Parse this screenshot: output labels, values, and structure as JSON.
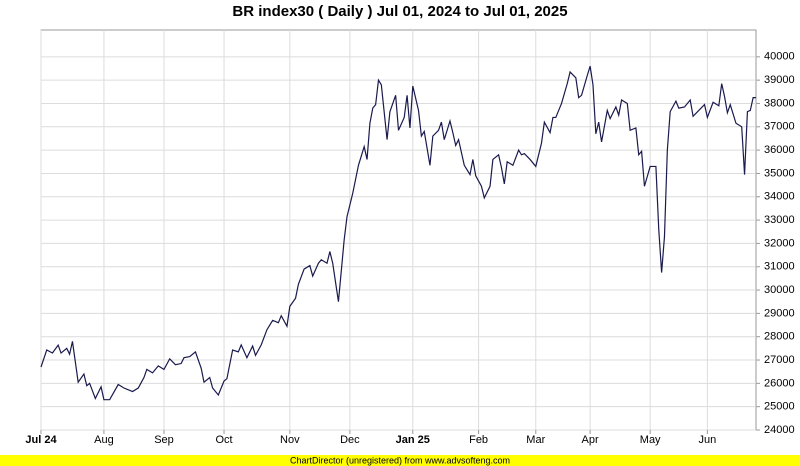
{
  "chart_data": {
    "type": "line",
    "title": "BR index30 ( Daily ) Jul 01, 2024 to Jul 01, 2025",
    "footer": "ChartDirector (unregistered) from www.advsofteng.com",
    "x": [
      0,
      2,
      4,
      6,
      7,
      9,
      10,
      11,
      13,
      15,
      16,
      17,
      19,
      21,
      22,
      24,
      27,
      29,
      32,
      34,
      36,
      37,
      39,
      41,
      43,
      45,
      47,
      49,
      50,
      52,
      54,
      56,
      57,
      59,
      60,
      62,
      64,
      65,
      67,
      69,
      70,
      72,
      74,
      75,
      77,
      79,
      81,
      83,
      84,
      86,
      87,
      89,
      90,
      92,
      94,
      95,
      97,
      98,
      100,
      101,
      102,
      104,
      106,
      107,
      109,
      111,
      113,
      114,
      115,
      116,
      117,
      118,
      119,
      121,
      122,
      124,
      125,
      127,
      128,
      129,
      130,
      132,
      133,
      134,
      136,
      137,
      139,
      140,
      141,
      143,
      144,
      145,
      146,
      148,
      150,
      151,
      152,
      154,
      155,
      157,
      158,
      160,
      161,
      162,
      163,
      165,
      167,
      168,
      169,
      171,
      173,
      175,
      176,
      178,
      179,
      180,
      182,
      184,
      185,
      187,
      188,
      189,
      191,
      192,
      193,
      194,
      195,
      196,
      198,
      199,
      201,
      202,
      203,
      205,
      206,
      208,
      209,
      210,
      211,
      213,
      215,
      216,
      217,
      218,
      219,
      220,
      222,
      223,
      225,
      227,
      228,
      230,
      232,
      233,
      235,
      237,
      238,
      239,
      240,
      241,
      243,
      245,
      246,
      247,
      248,
      249,
      250
    ],
    "series": [
      {
        "color": "#1a1a4e",
        "values": [
          26700,
          27430,
          27300,
          27640,
          27300,
          27500,
          27250,
          27800,
          26050,
          26400,
          25900,
          26000,
          25350,
          25850,
          25300,
          25300,
          25950,
          25800,
          25650,
          25800,
          26250,
          26600,
          26450,
          26750,
          26600,
          27050,
          26800,
          26850,
          27100,
          27150,
          27350,
          26650,
          26050,
          26250,
          25800,
          25500,
          26100,
          26200,
          27430,
          27350,
          27650,
          27100,
          27600,
          27200,
          27650,
          28300,
          28700,
          28600,
          28900,
          28450,
          29300,
          29650,
          30250,
          30900,
          31050,
          30600,
          31150,
          31300,
          31150,
          31650,
          31150,
          29500,
          32150,
          33150,
          34150,
          35350,
          36150,
          35600,
          37150,
          37800,
          37950,
          39000,
          38800,
          36450,
          37650,
          38350,
          36850,
          37400,
          38350,
          36950,
          38750,
          37700,
          36600,
          36800,
          35350,
          36600,
          36850,
          37200,
          36450,
          37250,
          36750,
          36200,
          36450,
          35350,
          34950,
          35600,
          34900,
          34450,
          33950,
          34450,
          35600,
          35800,
          35250,
          34550,
          35500,
          35350,
          36000,
          35800,
          35850,
          35600,
          35300,
          36300,
          37200,
          36750,
          37400,
          37400,
          38000,
          38850,
          39350,
          39100,
          38250,
          38350,
          39200,
          39600,
          38800,
          36700,
          37200,
          36350,
          37700,
          37350,
          37850,
          37500,
          38150,
          38000,
          36850,
          36950,
          35800,
          35950,
          34450,
          35300,
          35300,
          32600,
          30750,
          32300,
          36000,
          37650,
          38100,
          37800,
          37850,
          38150,
          37450,
          37700,
          37950,
          37400,
          38050,
          37900,
          38850,
          38300,
          37600,
          37950,
          37150,
          37000,
          34950,
          37650,
          37700,
          38250,
          38250
        ]
      }
    ],
    "xlim": [
      0,
      250
    ],
    "xticks": [
      {
        "value": 0,
        "label": "Jul 24"
      },
      {
        "value": 22,
        "label": "Aug"
      },
      {
        "value": 43,
        "label": "Sep"
      },
      {
        "value": 64,
        "label": "Oct"
      },
      {
        "value": 87,
        "label": "Nov"
      },
      {
        "value": 108,
        "label": "Dec"
      },
      {
        "value": 130,
        "label": "Jan 25"
      },
      {
        "value": 153,
        "label": "Feb"
      },
      {
        "value": 173,
        "label": "Mar"
      },
      {
        "value": 192,
        "label": "Apr"
      },
      {
        "value": 213,
        "label": "May"
      },
      {
        "value": 233,
        "label": "Jun"
      }
    ],
    "ylim": [
      24000,
      41150
    ],
    "yticks": [
      24000,
      25000,
      26000,
      27000,
      28000,
      29000,
      30000,
      31000,
      32000,
      33000,
      34000,
      35000,
      36000,
      37000,
      38000,
      39000,
      40000
    ],
    "grid": true
  }
}
